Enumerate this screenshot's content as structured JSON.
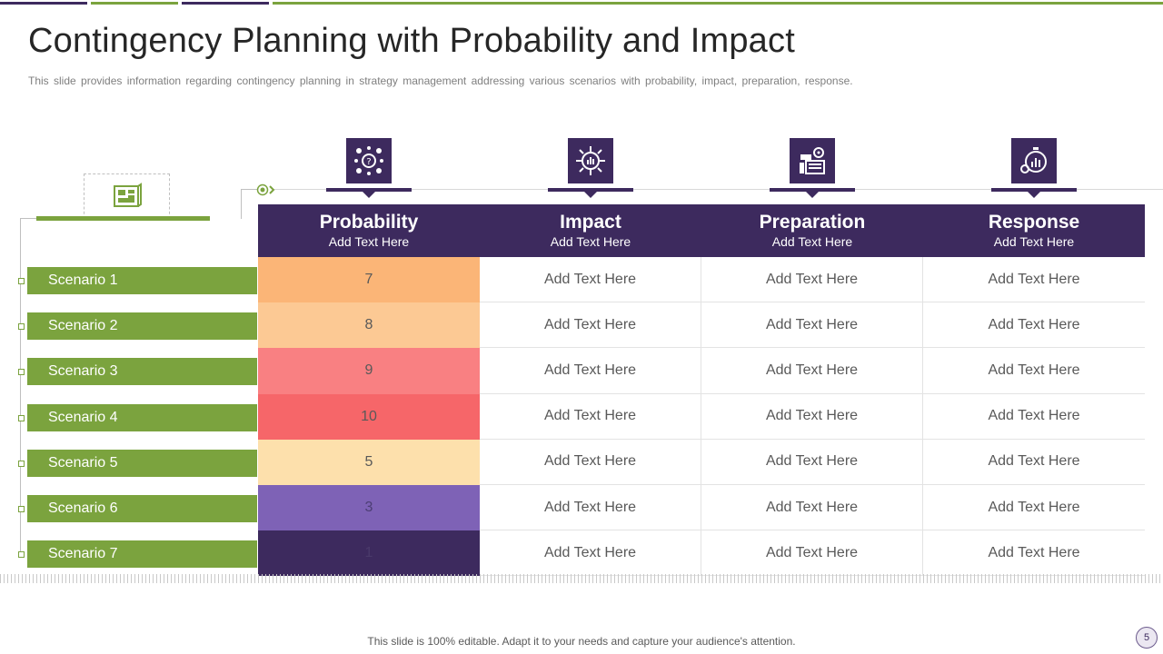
{
  "title": "Contingency Planning with Probability and Impact",
  "subtitle": "This slide provides information regarding contingency planning in strategy management addressing various scenarios with probability, impact, preparation, response.",
  "columns": [
    {
      "title": "Probability",
      "sub": "Add Text Here",
      "icon": "probability-icon"
    },
    {
      "title": "Impact",
      "sub": "Add Text Here",
      "icon": "impact-icon"
    },
    {
      "title": "Preparation",
      "sub": "Add Text Here",
      "icon": "preparation-icon"
    },
    {
      "title": "Response",
      "sub": "Add Text Here",
      "icon": "response-icon"
    }
  ],
  "scenarios": [
    {
      "name": "Scenario 1",
      "probability": "7",
      "color": "#fbb577",
      "text_color": "#595959",
      "impact": "Add Text Here",
      "preparation": "Add Text Here",
      "response": "Add Text Here"
    },
    {
      "name": "Scenario 2",
      "probability": "8",
      "color": "#fcc994",
      "text_color": "#595959",
      "impact": "Add Text Here",
      "preparation": "Add Text Here",
      "response": "Add Text Here"
    },
    {
      "name": "Scenario 3",
      "probability": "9",
      "color": "#f98082",
      "text_color": "#595959",
      "impact": "Add Text Here",
      "preparation": "Add Text Here",
      "response": "Add Text Here"
    },
    {
      "name": "Scenario 4",
      "probability": "10",
      "color": "#f66669",
      "text_color": "#595959",
      "impact": "Add Text Here",
      "preparation": "Add Text Here",
      "response": "Add Text Here"
    },
    {
      "name": "Scenario 5",
      "probability": "5",
      "color": "#fde0ac",
      "text_color": "#595959",
      "impact": "Add Text Here",
      "preparation": "Add Text Here",
      "response": "Add Text Here"
    },
    {
      "name": "Scenario 6",
      "probability": "3",
      "color": "#7e62b6",
      "text_color": "#4c3e74",
      "impact": "Add Text Here",
      "preparation": "Add Text Here",
      "response": "Add Text Here"
    },
    {
      "name": "Scenario 7",
      "probability": "1",
      "color": "#3d2a5e",
      "text_color": "#4a3a6a",
      "impact": "Add Text Here",
      "preparation": "Add Text Here",
      "response": "Add Text Here"
    }
  ],
  "footer": "This slide is 100% editable. Adapt it to your needs and capture your audience's attention.",
  "page_number": "5",
  "colors": {
    "primary": "#3d2a5e",
    "accent": "#7ba33e"
  }
}
